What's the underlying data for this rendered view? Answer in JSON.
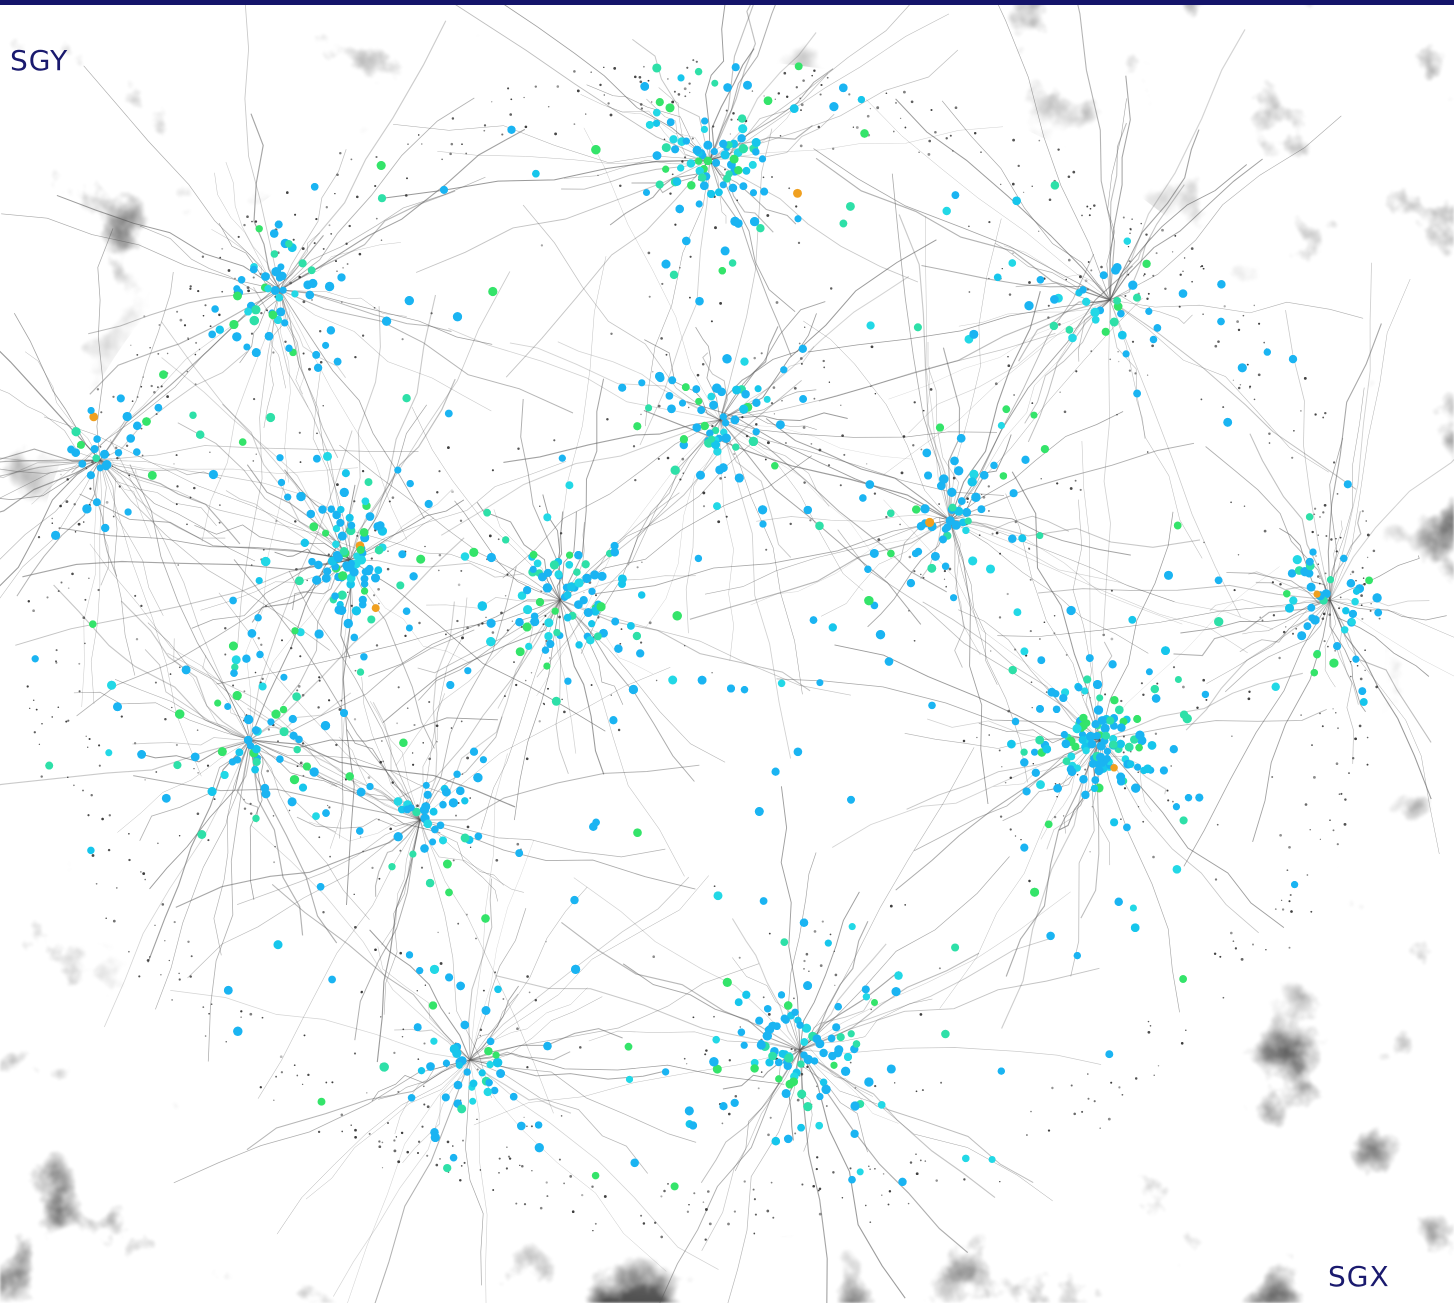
{
  "labels": {
    "y_axis": "SGY",
    "x_axis": "SGX"
  }
}
